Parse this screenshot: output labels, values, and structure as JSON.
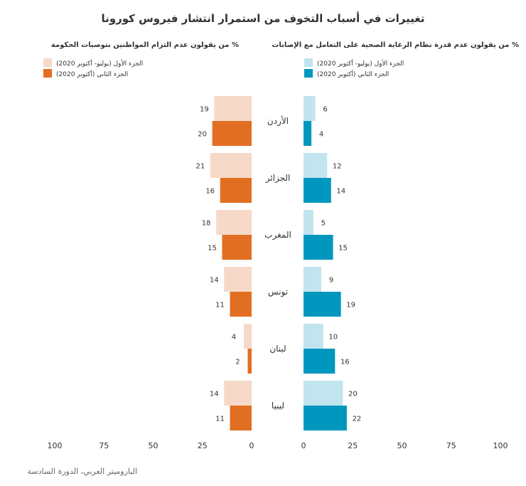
{
  "chart_data": {
    "type": "bar",
    "title": "تغييرات في أسباب التخوف من استمرار انتشار فيروس كورونا",
    "source": "الباروميتر العربي، الدورة السادسة",
    "categories": [
      "الأردن",
      "الجزائر",
      "المغرب",
      "تونس",
      "لبنان",
      "ليبيا"
    ],
    "axis_ticks": [
      0,
      25,
      50,
      75,
      100
    ],
    "xlim": [
      0,
      100
    ],
    "panels": [
      {
        "id": "health",
        "title": "% من يقولون عدم قدرة نظام الرعاية الصحية على التعامل مع الإصابات",
        "direction": "right",
        "series": [
          {
            "name": "الجزء الأول (يوليو- أكتوبر 2020)",
            "color": "#c1e4ee",
            "values": [
              6,
              12,
              5,
              9,
              10,
              20
            ]
          },
          {
            "name": "الجزء الثاني (أكتوبر 2020)",
            "color": "#0097bf",
            "values": [
              4,
              14,
              15,
              19,
              16,
              22
            ]
          }
        ]
      },
      {
        "id": "compliance",
        "title": "% من يقولون عدم التزام المواطنين بتوصيات الحكومة",
        "direction": "left",
        "series": [
          {
            "name": "الجزء الأول (يوليو- أكتوبر 2020)",
            "color": "#f6d9c8",
            "values": [
              19,
              21,
              18,
              14,
              4,
              14
            ]
          },
          {
            "name": "الجزء الثاني (أكتوبر 2020)",
            "color": "#e26f21",
            "values": [
              20,
              16,
              15,
              11,
              2,
              11
            ]
          }
        ]
      }
    ]
  }
}
